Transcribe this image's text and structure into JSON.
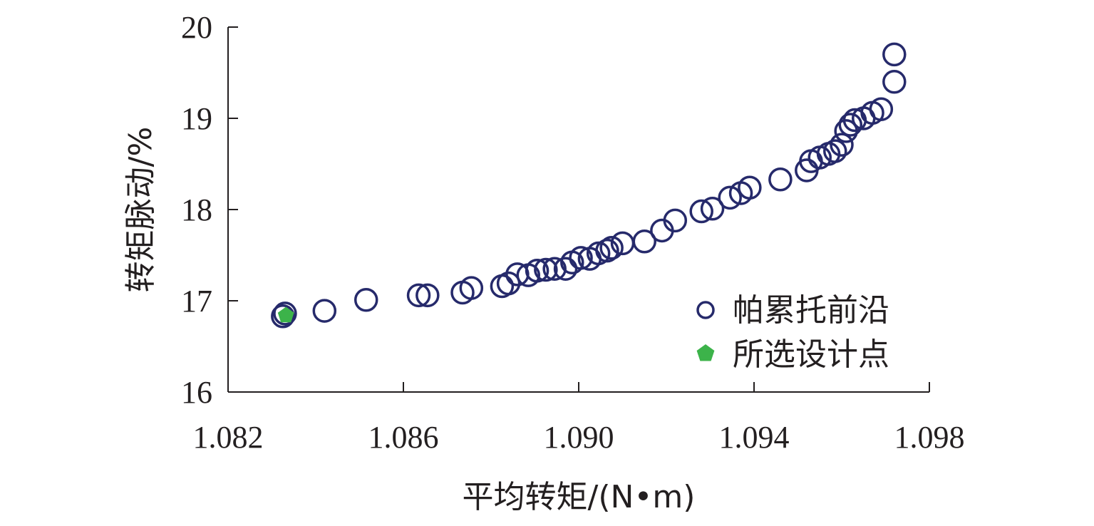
{
  "chart_data": {
    "type": "scatter",
    "xlabel": "平均转矩/(N•m)",
    "ylabel": "转矩脉动/%",
    "xlim": [
      1.082,
      1.098
    ],
    "ylim": [
      16,
      20
    ],
    "x_ticks": [
      "1.082",
      "1.086",
      "1.090",
      "1.094",
      "1.098"
    ],
    "y_ticks": [
      "16",
      "17",
      "18",
      "19",
      "20"
    ],
    "x_tick_values": [
      1.082,
      1.086,
      1.09,
      1.094,
      1.098
    ],
    "y_tick_values": [
      16,
      17,
      18,
      19,
      20
    ],
    "grid": false,
    "legend_position": "bottom-right",
    "series": [
      {
        "name": "帕累托前沿",
        "marker": "open-circle",
        "color": "#262a6b",
        "x": [
          1.08325,
          1.0833,
          1.0842,
          1.08515,
          1.08635,
          1.08655,
          1.08735,
          1.08755,
          1.08825,
          1.0884,
          1.0886,
          1.08885,
          1.08905,
          1.08925,
          1.08945,
          1.0897,
          1.08985,
          1.09005,
          1.09025,
          1.09045,
          1.09065,
          1.09075,
          1.091,
          1.0915,
          1.0919,
          1.0922,
          1.0928,
          1.09305,
          1.09345,
          1.0937,
          1.0939,
          1.0946,
          1.0952,
          1.0953,
          1.0955,
          1.0957,
          1.09585,
          1.096,
          1.0961,
          1.0962,
          1.0963,
          1.0965,
          1.0967,
          1.0969,
          1.0972,
          1.0972
        ],
        "y": [
          16.83,
          16.86,
          16.89,
          17.01,
          17.06,
          17.06,
          17.09,
          17.14,
          17.16,
          17.19,
          17.29,
          17.28,
          17.33,
          17.34,
          17.35,
          17.35,
          17.42,
          17.47,
          17.46,
          17.52,
          17.55,
          17.58,
          17.63,
          17.65,
          17.77,
          17.88,
          17.98,
          18.01,
          18.13,
          18.18,
          18.24,
          18.33,
          18.43,
          18.53,
          18.57,
          18.61,
          18.64,
          18.71,
          18.86,
          18.93,
          18.98,
          19.0,
          19.06,
          19.1,
          19.4,
          19.7
        ]
      },
      {
        "name": "所选设计点",
        "marker": "pentagon",
        "color": "#3cb34a",
        "x": [
          1.08332
        ],
        "y": [
          16.84
        ]
      }
    ]
  }
}
